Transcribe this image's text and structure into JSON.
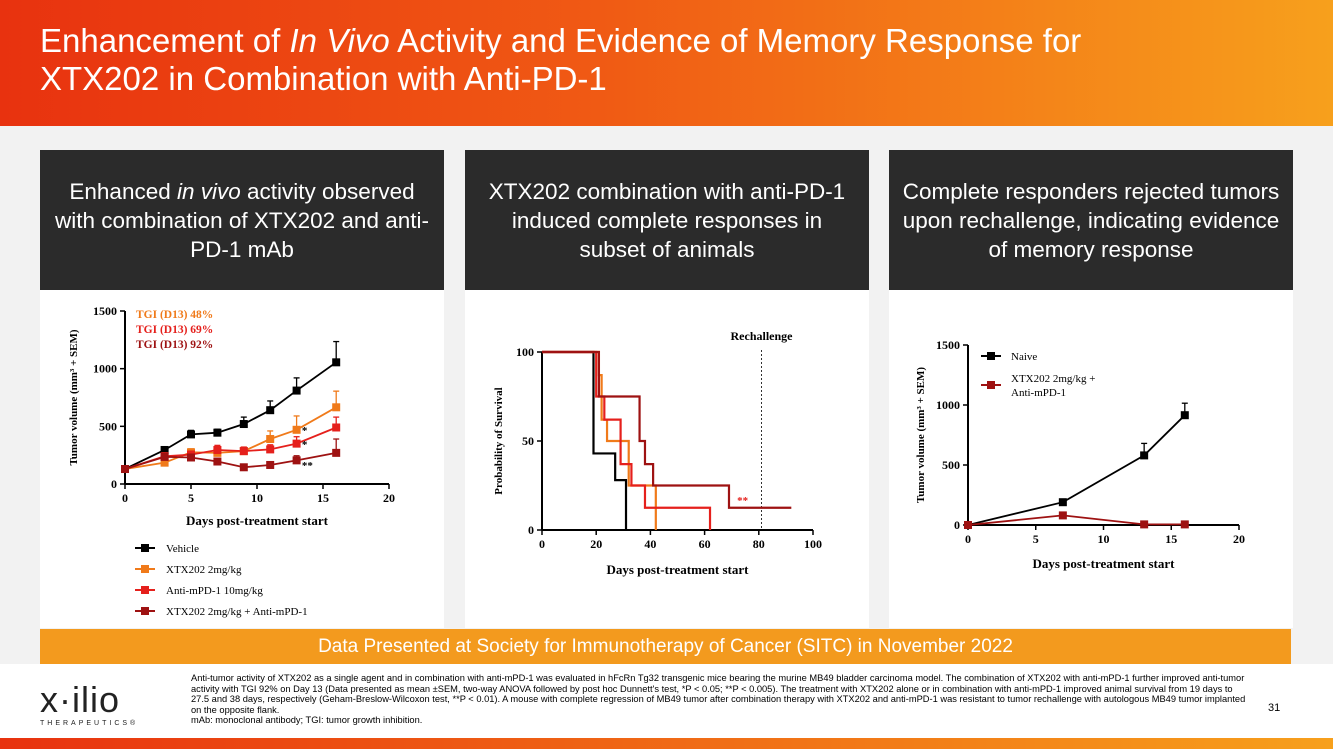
{
  "title": {
    "part1": "Enhancement of ",
    "part2": "In Vivo",
    "part3": " Activity and Evidence of Memory Response for",
    "line2": "XTX202 in Combination with Anti-PD-1"
  },
  "panels": [
    {
      "head_a": "Enhanced ",
      "head_b": "in vivo",
      "head_c": " activity observed with combination of XTX202 and anti-PD-1 mAb"
    },
    {
      "head": "XTX202 combination with anti-PD-1 induced complete responses in subset of animals"
    },
    {
      "head": "Complete responders rejected tumors upon rechallenge, indicating evidence of memory response"
    }
  ],
  "colors": {
    "black": "#000000",
    "orange": "#f07a1a",
    "red": "#e5201c",
    "darkred": "#9e1212",
    "accent": "#f39a1e"
  },
  "chart_data": [
    {
      "type": "line",
      "title": "",
      "xlabel": "Days post-treatment start",
      "ylabel": "Tumor volume (mm³ + SEM)",
      "xlim": [
        0,
        20
      ],
      "ylim": [
        0,
        1500
      ],
      "xticks": [
        "0",
        "5",
        "10",
        "15",
        "20"
      ],
      "yticks": [
        "0",
        "500",
        "1000",
        "1500"
      ],
      "annotations": [
        "TGI (D13) 48%",
        "TGI (D13) 69%",
        "TGI (D13) 92%"
      ],
      "sig_marks": [
        "*",
        "*",
        "**"
      ],
      "series": [
        {
          "name": "Vehicle",
          "color": "#000000",
          "x": [
            0,
            3,
            5,
            7,
            9,
            11,
            13,
            16
          ],
          "y": [
            130,
            295,
            430,
            445,
            520,
            640,
            810,
            1055
          ],
          "err": [
            20,
            25,
            35,
            30,
            60,
            80,
            110,
            180
          ]
        },
        {
          "name": "XTX202 2mg/kg",
          "color": "#f07a1a",
          "x": [
            0,
            3,
            5,
            7,
            9,
            11,
            13,
            16
          ],
          "y": [
            130,
            185,
            275,
            270,
            285,
            390,
            470,
            665
          ],
          "err": [
            20,
            25,
            30,
            30,
            35,
            70,
            120,
            140
          ]
        },
        {
          "name": "Anti-mPD-1 10mg/kg",
          "color": "#e5201c",
          "x": [
            0,
            3,
            5,
            7,
            9,
            11,
            13,
            16
          ],
          "y": [
            130,
            240,
            255,
            295,
            285,
            300,
            350,
            490
          ],
          "err": [
            20,
            30,
            30,
            40,
            35,
            40,
            60,
            90
          ]
        },
        {
          "name": "XTX202 2mg/kg + Anti-mPD-1",
          "color": "#9e1212",
          "x": [
            0,
            3,
            5,
            7,
            9,
            11,
            13,
            16
          ],
          "y": [
            130,
            235,
            230,
            195,
            145,
            165,
            205,
            270
          ],
          "err": [
            20,
            20,
            25,
            25,
            20,
            25,
            40,
            120
          ]
        }
      ]
    },
    {
      "type": "step",
      "title": "",
      "xlabel": "Days post-treatment start",
      "ylabel": "Probability of Survival",
      "xlim": [
        0,
        100
      ],
      "ylim": [
        0,
        100
      ],
      "xticks": [
        "0",
        "20",
        "40",
        "60",
        "80",
        "100"
      ],
      "yticks": [
        "0",
        "50",
        "100"
      ],
      "annotation": "Rechallenge",
      "rechallenge_x": 81,
      "sig_mark": "**",
      "series": [
        {
          "name": "Vehicle",
          "color": "#000000",
          "x": [
            0,
            19,
            19,
            27,
            27,
            31,
            31
          ],
          "y": [
            100,
            100,
            43,
            43,
            28,
            28,
            0
          ]
        },
        {
          "name": "XTX202 2mg/kg",
          "color": "#f07a1a",
          "x": [
            0,
            21,
            21,
            22,
            22,
            24,
            24,
            32,
            32,
            42,
            42
          ],
          "y": [
            100,
            100,
            87,
            87,
            62,
            62,
            50,
            50,
            25,
            25,
            0
          ]
        },
        {
          "name": "Anti-mPD-1 10mg/kg",
          "color": "#e5201c",
          "x": [
            0,
            20,
            20,
            23,
            23,
            29,
            29,
            33,
            33,
            38,
            38,
            62,
            62
          ],
          "y": [
            100,
            100,
            75,
            75,
            62,
            62,
            37,
            37,
            25,
            25,
            12.5,
            12.5,
            0
          ]
        },
        {
          "name": "XTX202 2mg/kg + Anti-mPD-1",
          "color": "#9e1212",
          "x": [
            0,
            21,
            21,
            25,
            25,
            36,
            36,
            38,
            38,
            41,
            41,
            69,
            69,
            92
          ],
          "y": [
            100,
            100,
            75,
            75,
            75,
            75,
            50,
            50,
            37,
            37,
            25,
            25,
            12.5,
            12.5
          ]
        }
      ]
    },
    {
      "type": "line",
      "title": "",
      "xlabel": "Days post-treatment start",
      "ylabel": "Tumor volume (mm³ + SEM)",
      "xlim": [
        0,
        20
      ],
      "ylim": [
        0,
        1500
      ],
      "xticks": [
        "0",
        "5",
        "10",
        "15",
        "20"
      ],
      "yticks": [
        "0",
        "500",
        "1000",
        "1500"
      ],
      "series": [
        {
          "name": "Naive",
          "color": "#000000",
          "x": [
            0,
            7,
            13,
            16
          ],
          "y": [
            0,
            190,
            580,
            915
          ],
          "err": [
            0,
            20,
            100,
            100
          ]
        },
        {
          "name": "XTX202 2mg/kg + Anti-mPD-1",
          "legend_line1": "XTX202 2mg/kg +",
          "legend_line2": "Anti-mPD-1",
          "color": "#9e1212",
          "x": [
            0,
            7,
            13,
            16
          ],
          "y": [
            0,
            80,
            5,
            5
          ],
          "err": [
            0,
            0,
            0,
            0
          ]
        }
      ]
    }
  ],
  "banner": "Data Presented at Society for Immunotherapy of Cancer (SITC) in November 2022",
  "footnote": "Anti-tumor activity of XTX202 as a single agent and in combination with anti-mPD-1 was evaluated in hFcRn Tg32 transgenic mice bearing the murine MB49 bladder carcinoma model. The combination of XTX202 with anti-mPD-1 further improved anti-tumor activity with TGI 92% on Day 13 (Data presented as mean ±SEM, two-way ANOVA followed by post hoc Dunnett's test, *P < 0.05; **P < 0.005). The treatment with XTX202 alone or in combination with anti-mPD-1 improved animal survival from 19 days to 27.5 and 38 days, respectively (Geham-Breslow-Wilcoxon test, **P < 0.01). A mouse with complete regression of MB49 tumor after combination therapy with XTX202 and anti-mPD-1 was resistant to tumor rechallenge with autologous MB49 tumor implanted on the opposite flank.",
  "footnote2": "mAb: monoclonal antibody; TGI: tumor growth inhibition.",
  "page_number": "31",
  "logo": {
    "word": "x·ilio",
    "sub": "THERAPEUTICS®"
  }
}
